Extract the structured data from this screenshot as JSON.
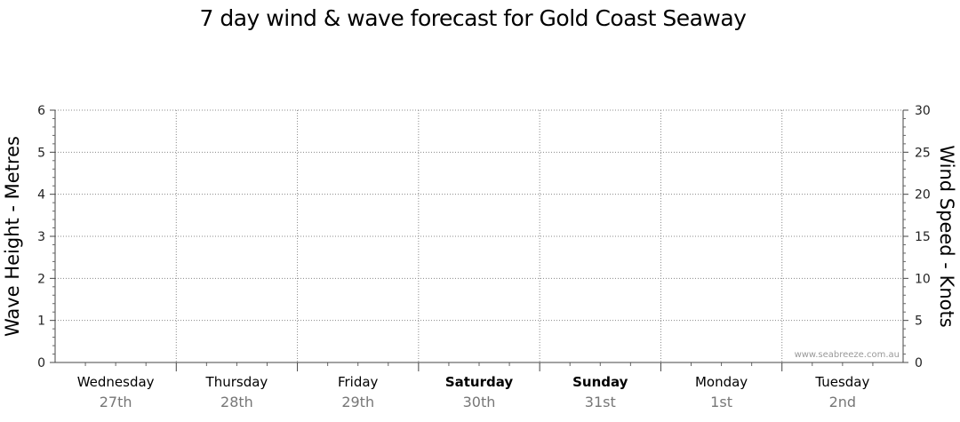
{
  "chart_data": {
    "type": "line",
    "title": "7 day wind & wave forecast for Gold Coast Seaway",
    "ylabel_left": "Wave Height - Metres",
    "ylabel_right": "Wind Speed - Knots",
    "ylim_left": [
      0,
      6
    ],
    "ylim_right": [
      0,
      30
    ],
    "yticks_left": [
      "0",
      "1",
      "2",
      "3",
      "4",
      "5",
      "6"
    ],
    "yticks_right": [
      "0",
      "5",
      "10",
      "15",
      "20",
      "25",
      "30"
    ],
    "grid": true,
    "days": [
      {
        "day": "Wednesday",
        "date": "27th",
        "bold": false
      },
      {
        "day": "Thursday",
        "date": "28th",
        "bold": false
      },
      {
        "day": "Friday",
        "date": "29th",
        "bold": false
      },
      {
        "day": "Saturday",
        "date": "30th",
        "bold": true
      },
      {
        "day": "Sunday",
        "date": "31st",
        "bold": true
      },
      {
        "day": "Monday",
        "date": "1st",
        "bold": false
      },
      {
        "day": "Tuesday",
        "date": "2nd",
        "bold": false
      }
    ],
    "series": []
  },
  "watermark": "www.seabreeze.com.au"
}
